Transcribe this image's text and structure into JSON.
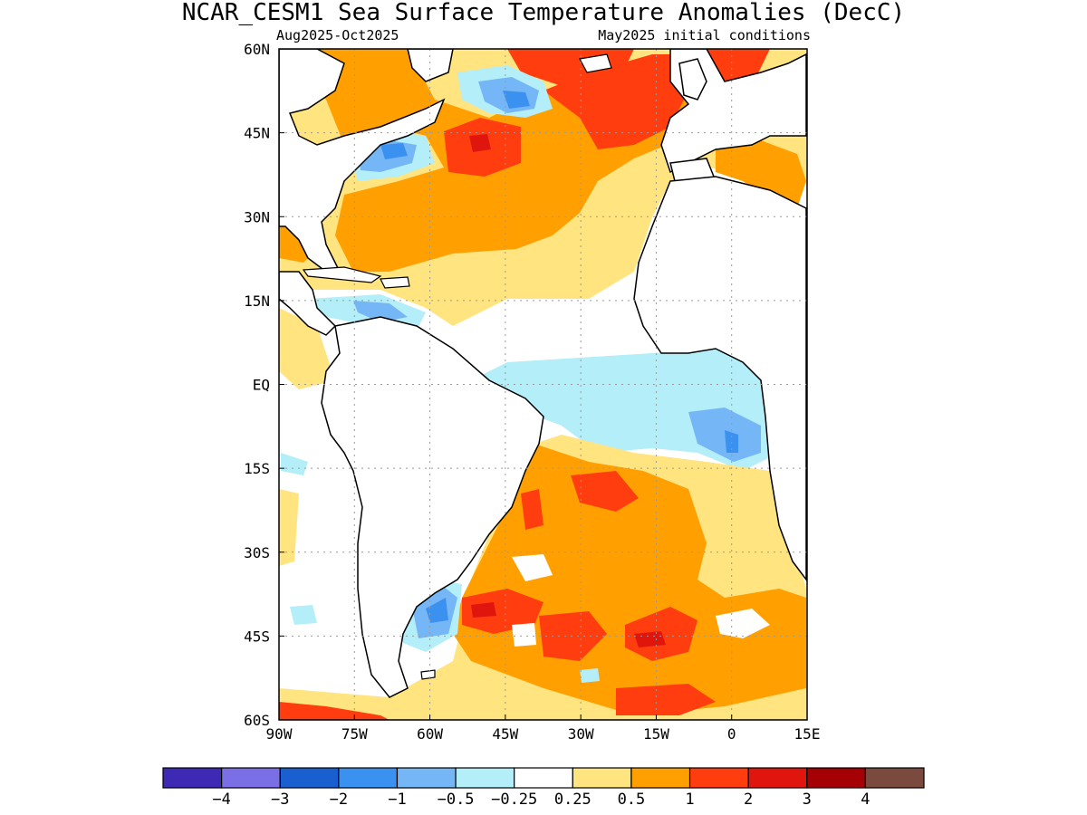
{
  "title": "NCAR_CESM1 Sea Surface Temperature Anomalies (DecC)",
  "subtitle_left": "Aug2025-Oct2025",
  "subtitle_right": "May2025 initial conditions",
  "map": {
    "lon_range": [
      -90,
      15
    ],
    "lat_range": [
      -60,
      60
    ],
    "lon_ticks": [
      {
        "value": -90,
        "label": "90W"
      },
      {
        "value": -75,
        "label": "75W"
      },
      {
        "value": -60,
        "label": "60W"
      },
      {
        "value": -45,
        "label": "45W"
      },
      {
        "value": -30,
        "label": "30W"
      },
      {
        "value": -15,
        "label": "15W"
      },
      {
        "value": 0,
        "label": "0"
      },
      {
        "value": 15,
        "label": "15E"
      }
    ],
    "lat_ticks": [
      {
        "value": 60,
        "label": "60N"
      },
      {
        "value": 45,
        "label": "45N"
      },
      {
        "value": 30,
        "label": "30N"
      },
      {
        "value": 15,
        "label": "15N"
      },
      {
        "value": 0,
        "label": "EQ"
      },
      {
        "value": -15,
        "label": "15S"
      },
      {
        "value": -30,
        "label": "30S"
      },
      {
        "value": -45,
        "label": "45S"
      },
      {
        "value": -60,
        "label": "60S"
      }
    ],
    "gridlines": "dotted"
  },
  "colorbar": {
    "colors": [
      "#3e29b5",
      "#7b6fe6",
      "#1a5fd0",
      "#3b91f0",
      "#74b6f6",
      "#b4eef8",
      "#ffffff",
      "#ffe480",
      "#ffa000",
      "#ff3d0e",
      "#e0160e",
      "#a50005",
      "#7a4a3e"
    ],
    "labels": [
      "−4",
      "−3",
      "−2",
      "−1",
      "−0.5",
      "−0.25",
      "0.25",
      "0.5",
      "1",
      "2",
      "3",
      "4"
    ]
  }
}
